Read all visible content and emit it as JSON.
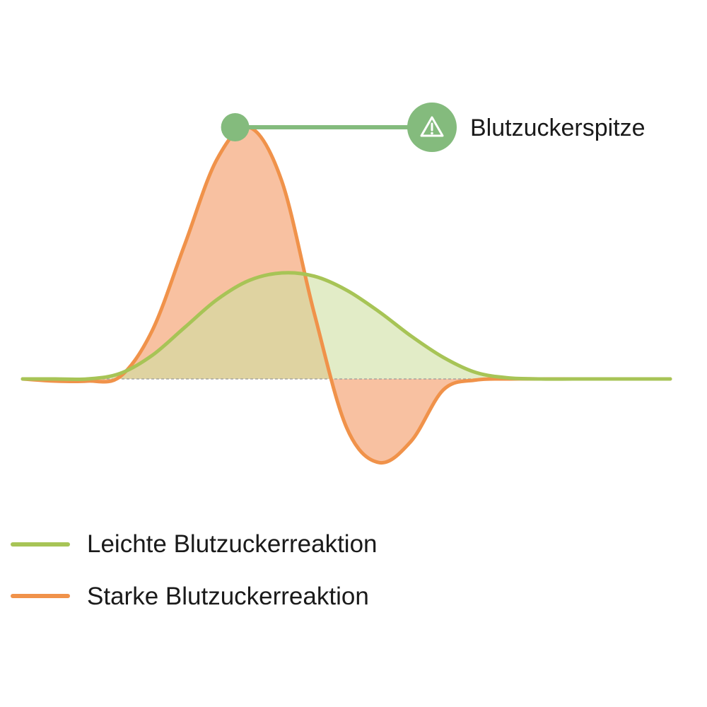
{
  "chart_data": {
    "type": "area",
    "title": "",
    "xlabel": "",
    "ylabel": "",
    "grid": false,
    "baseline": 0,
    "axes_visible": false,
    "xlim": [
      0,
      100
    ],
    "ylim": [
      -1,
      3
    ],
    "legend_position": "bottom-left",
    "series": [
      {
        "name": "Leichte Blutzuckerreaktion",
        "color": "#a7c456",
        "fill": "#cfe0a1",
        "x": [
          0,
          5,
          10,
          15,
          20,
          25,
          30,
          35,
          40,
          45,
          50,
          55,
          60,
          65,
          70,
          75,
          80,
          85,
          90,
          95,
          100
        ],
        "values": [
          0,
          0,
          0,
          0.05,
          0.22,
          0.48,
          0.74,
          0.92,
          0.99,
          0.96,
          0.83,
          0.63,
          0.4,
          0.2,
          0.06,
          0.01,
          0,
          0,
          0,
          0,
          0
        ]
      },
      {
        "name": "Starke Blutzuckerreaktion",
        "color": "#f0924a",
        "fill": "#f7b690",
        "x": [
          0,
          5,
          10,
          15,
          20,
          25,
          30,
          35,
          40,
          45,
          50,
          55,
          60,
          65,
          70,
          75,
          80,
          85,
          90,
          95,
          100
        ],
        "values": [
          0,
          -0.02,
          -0.02,
          0.02,
          0.45,
          1.25,
          2.05,
          2.35,
          1.85,
          0.62,
          -0.45,
          -0.78,
          -0.58,
          -0.1,
          -0.01,
          0,
          0,
          0,
          0,
          0,
          0
        ]
      }
    ],
    "annotations": [
      {
        "text": "Blutzuckerspitze",
        "series": "Starke Blutzuckerreaktion",
        "point": "max",
        "icon": "warning-icon",
        "color": "#84bb7d"
      }
    ]
  }
}
